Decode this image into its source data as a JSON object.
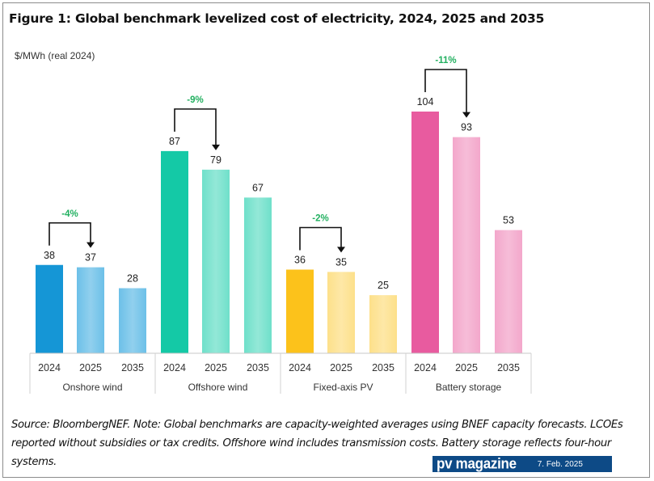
{
  "title": "Figure 1: Global benchmark levelized cost of electricity, 2024, 2025 and 2035",
  "unit_label": "$/MWh (real 2024)",
  "note": "Source: BloombergNEF. Note: Global benchmarks are capacity-weighted averages using BNEF capacity forecasts. LCOEs reported without subsidies or tax credits. Offshore wind includes transmission costs. Battery storage reflects four-hour systems.",
  "badge": {
    "brand": "pv magazine",
    "date": "7. Feb. 2025",
    "color": "#0d4a86"
  },
  "chart_data": {
    "type": "bar",
    "title": "Figure 1: Global benchmark levelized cost of electricity, 2024, 2025 and 2035",
    "ylabel": "$/MWh (real 2024)",
    "xlabel": "",
    "ylim": [
      0,
      110
    ],
    "grid": false,
    "legend": "none",
    "groups": [
      {
        "name": "Onshore wind",
        "categories": [
          "2024",
          "2025",
          "2035"
        ],
        "values": [
          38,
          37,
          28
        ],
        "change_label": "-4%",
        "color": "#1596d6",
        "light_color": "#6cc0e8"
      },
      {
        "name": "Offshore wind",
        "categories": [
          "2024",
          "2025",
          "2035"
        ],
        "values": [
          87,
          79,
          67
        ],
        "change_label": "-9%",
        "color": "#14c9a6",
        "light_color": "#6fe0ca"
      },
      {
        "name": "Fixed-axis PV",
        "categories": [
          "2024",
          "2025",
          "2035"
        ],
        "values": [
          36,
          35,
          25
        ],
        "change_label": "-2%",
        "color": "#fcc21b",
        "light_color": "#fde08a"
      },
      {
        "name": "Battery storage",
        "categories": [
          "2024",
          "2025",
          "2035"
        ],
        "values": [
          104,
          93,
          53
        ],
        "change_label": "-11%",
        "color": "#e85b9f",
        "light_color": "#f3a7cb"
      }
    ],
    "annotation_color": "#22b060"
  }
}
